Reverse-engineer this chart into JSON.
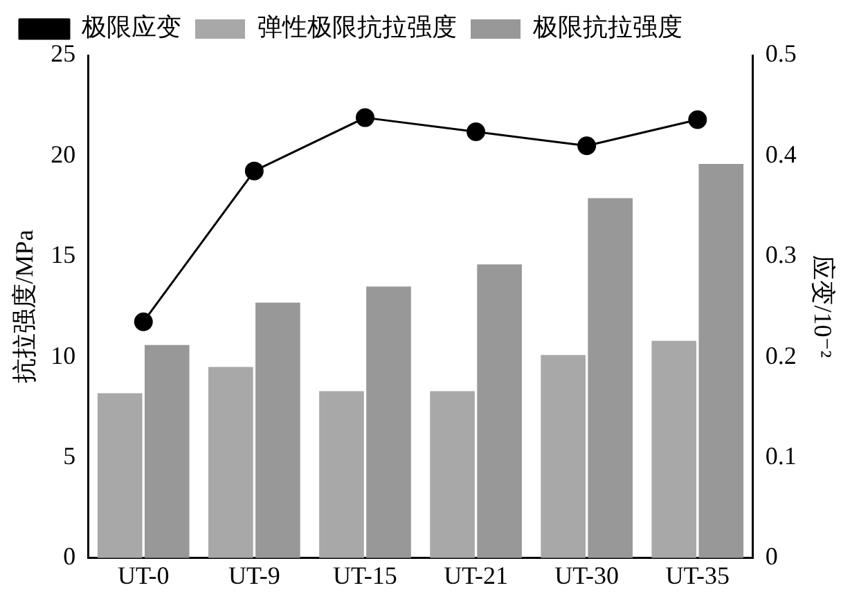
{
  "chart_data": {
    "type": "bar",
    "categories": [
      "UT-0",
      "UT-9",
      "UT-15",
      "UT-21",
      "UT-30",
      "UT-35"
    ],
    "ylabel": "抗拉强度/MPa",
    "y2label": "应变/10⁻²",
    "series": [
      {
        "name": "弹性极限抗拉强度",
        "color": "#a8a8a8",
        "values": [
          8.2,
          9.5,
          8.3,
          8.3,
          10.1,
          10.8
        ]
      },
      {
        "name": "极限抗拉强度",
        "color": "#989898",
        "values": [
          10.6,
          12.7,
          13.5,
          14.6,
          17.9,
          19.6
        ]
      },
      {
        "name": "极限应变",
        "type": "line",
        "axis": "y2",
        "color": "#000000",
        "marker": "circle",
        "values": [
          0.235,
          0.385,
          0.438,
          0.424,
          0.41,
          0.436
        ]
      }
    ],
    "ylim": [
      0,
      25
    ],
    "yticks": [
      0,
      5,
      10,
      15,
      20,
      25
    ],
    "y2lim": [
      0,
      0.5
    ],
    "y2ticks": [
      0,
      0.1,
      0.2,
      0.3,
      0.4,
      0.5
    ],
    "grid": false,
    "legend": "top left"
  }
}
